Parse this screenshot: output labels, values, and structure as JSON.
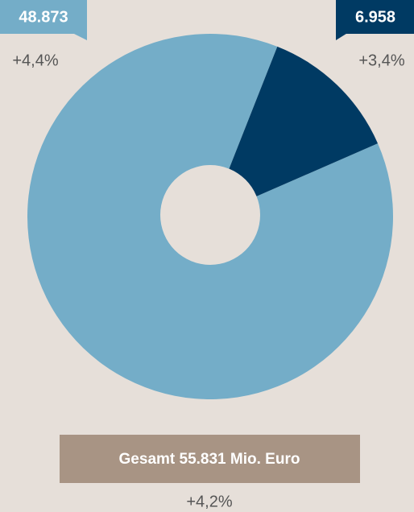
{
  "chart_data": {
    "type": "pie",
    "values": [
      48873,
      6958
    ],
    "value_labels": [
      "48.873",
      "6.958"
    ],
    "colors": [
      "#74adc8",
      "#003a63"
    ],
    "annotations": [
      "+4,4%",
      "+3,4%"
    ],
    "total_label": "Gesamt 55.831 Mio. Euro",
    "total_change": "+4,2%"
  }
}
